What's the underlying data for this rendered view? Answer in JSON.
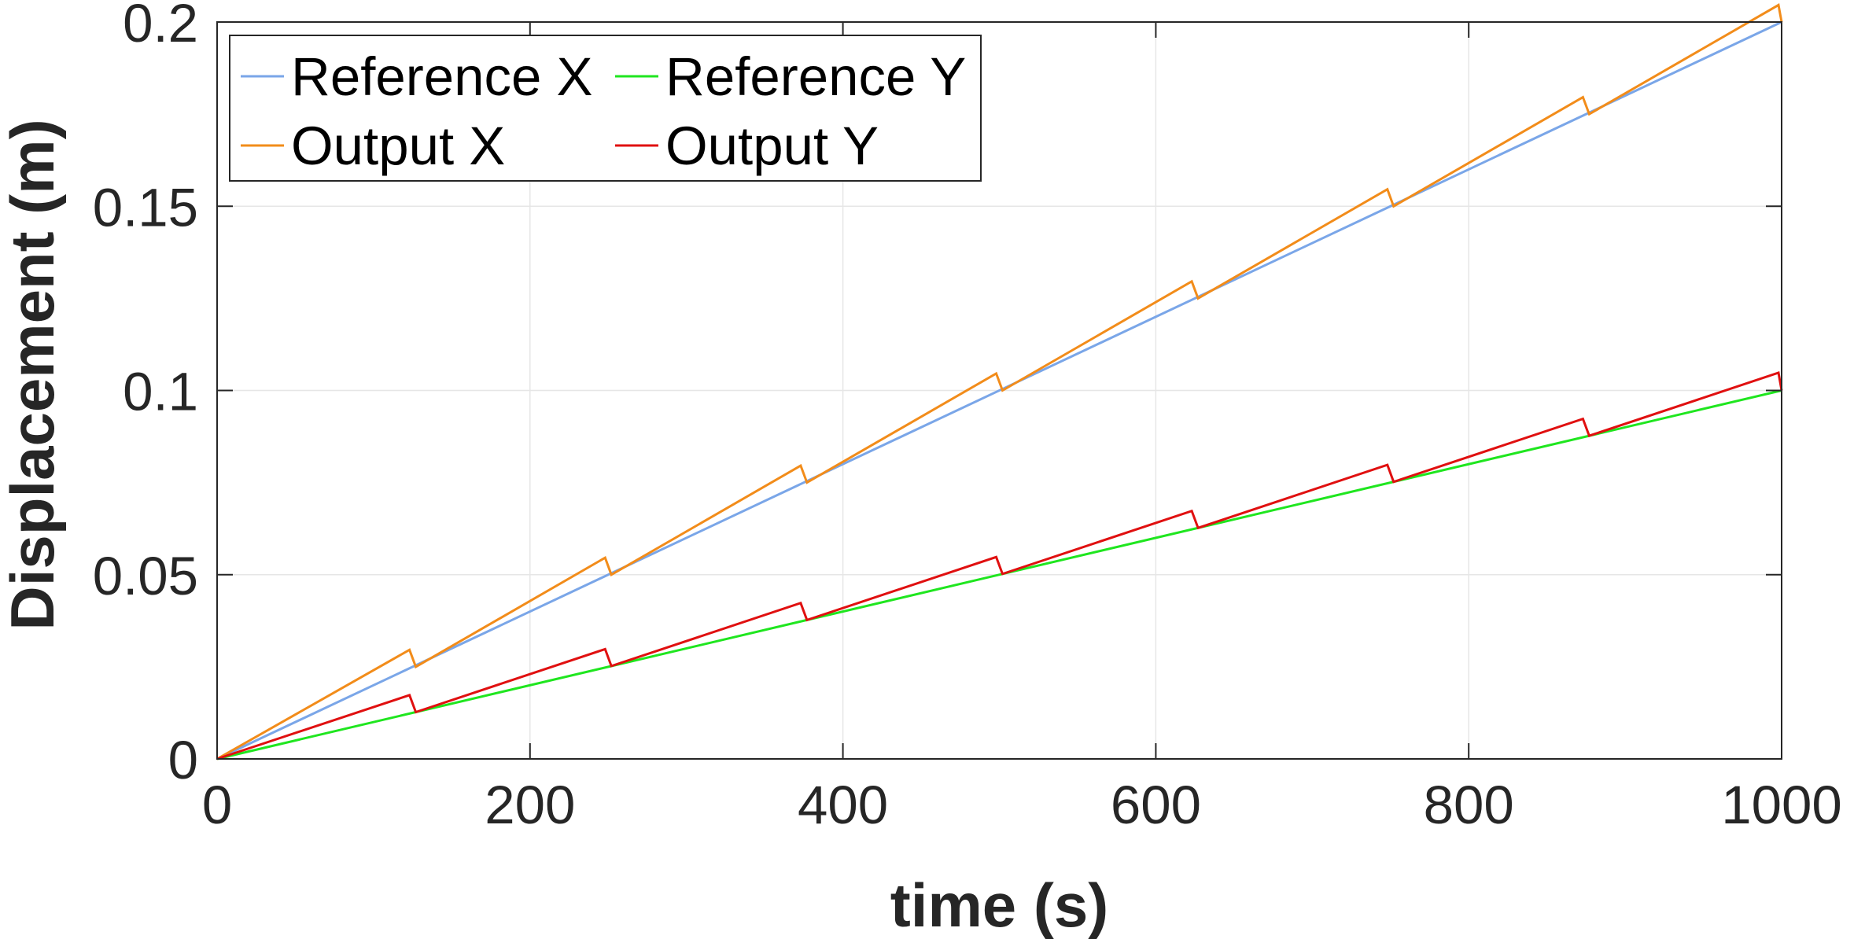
{
  "chart_data": {
    "type": "line",
    "xlabel": "time (s)",
    "ylabel": "Displacement (m)",
    "xlim": [
      0,
      1000
    ],
    "ylim": [
      0,
      0.2
    ],
    "xticks": [
      0,
      200,
      400,
      600,
      800,
      1000
    ],
    "xtick_labels": [
      "0",
      "200",
      "400",
      "600",
      "800",
      "1000"
    ],
    "yticks": [
      0,
      0.05,
      0.1,
      0.15,
      0.2
    ],
    "ytick_labels": [
      "0",
      "0.05",
      "0.1",
      "0.15",
      "0.2"
    ],
    "grid": true,
    "legend_position": "top-left",
    "legend_columns": 2,
    "series": [
      {
        "name": "Reference X",
        "color": "#7aa6e8",
        "x": [
          0,
          1000
        ],
        "y": [
          0,
          0.2
        ]
      },
      {
        "name": "Reference Y",
        "color": "#1fe61f",
        "x": [
          0,
          1000
        ],
        "y": [
          0,
          0.1
        ]
      },
      {
        "name": "Output X",
        "color": "#f28c1a",
        "x": [
          0,
          123,
          127,
          248,
          252,
          373,
          377,
          498,
          502,
          623,
          627,
          748,
          752,
          873,
          877,
          998,
          1000
        ],
        "y": [
          0,
          0.0296,
          0.025,
          0.0546,
          0.05,
          0.0796,
          0.075,
          0.1046,
          0.1,
          0.1296,
          0.125,
          0.1546,
          0.15,
          0.1796,
          0.175,
          0.2046,
          0.2
        ]
      },
      {
        "name": "Output Y",
        "color": "#e01010",
        "x": [
          0,
          123,
          127,
          248,
          252,
          373,
          377,
          498,
          502,
          623,
          627,
          748,
          752,
          873,
          877,
          998,
          1000
        ],
        "y": [
          0,
          0.0173,
          0.0127,
          0.0298,
          0.0252,
          0.0423,
          0.0377,
          0.0548,
          0.0502,
          0.0673,
          0.0627,
          0.0798,
          0.0752,
          0.0923,
          0.0877,
          0.1048,
          0.1
        ]
      }
    ]
  }
}
